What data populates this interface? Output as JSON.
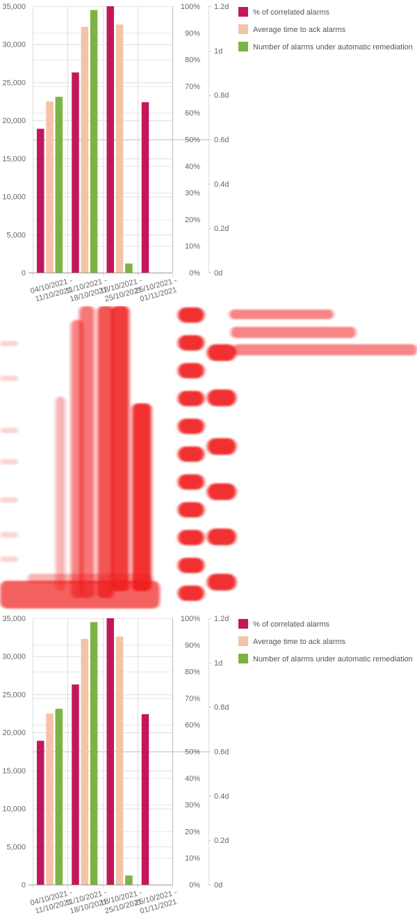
{
  "chart_data": {
    "type": "bar",
    "categories": [
      "04/10/2021 - 11/10/2021",
      "11/10/2021 - 18/10/2021",
      "18/10/2021 - 25/10/2021",
      "25/10/2021 - 01/11/2021"
    ],
    "category_lines": [
      [
        "04/10/2021 -",
        "11/10/2021"
      ],
      [
        "11/10/2021 -",
        "18/10/2021"
      ],
      [
        "18/10/2021 -",
        "25/10/2021"
      ],
      [
        "25/10/2021 -",
        "01/11/2021"
      ]
    ],
    "y_axes": [
      {
        "id": "count",
        "position": "left",
        "ylim": [
          0,
          35000
        ],
        "ticks": [
          0,
          5000,
          10000,
          15000,
          20000,
          25000,
          30000,
          35000
        ],
        "tick_labels": [
          "0",
          "5,000",
          "10,000",
          "15,000",
          "20,000",
          "25,000",
          "30,000",
          "35,000"
        ]
      },
      {
        "id": "percent",
        "position": "right",
        "ylim": [
          0,
          100
        ],
        "ticks": [
          0,
          10,
          20,
          30,
          40,
          50,
          60,
          70,
          80,
          90,
          100
        ],
        "tick_labels": [
          "0%",
          "10%",
          "20%",
          "30%",
          "40%",
          "50%",
          "60%",
          "70%",
          "80%",
          "90%",
          "100%"
        ]
      },
      {
        "id": "days",
        "position": "right-outer",
        "ylim": [
          0,
          1.2
        ],
        "ticks": [
          0,
          0.2,
          0.4,
          0.6,
          0.8,
          1,
          1.2
        ],
        "tick_labels": [
          "0d",
          "0.2d",
          "0.4d",
          "0.6d",
          "0.8d",
          "1d",
          "1.2d"
        ]
      }
    ],
    "series": [
      {
        "name": "% of correlated alarms",
        "color": "#c2185b",
        "values": [
          18900,
          26300,
          35000,
          22400
        ]
      },
      {
        "name": "Average time to ack alarms",
        "color": "#f4c3a6",
        "values": [
          22500,
          32300,
          32600,
          null
        ]
      },
      {
        "name": "Number of alarms under automatic remediation",
        "color": "#7cb342",
        "values": [
          23100,
          34500,
          1200,
          null
        ]
      }
    ],
    "legend_position": "right",
    "grid": true
  }
}
